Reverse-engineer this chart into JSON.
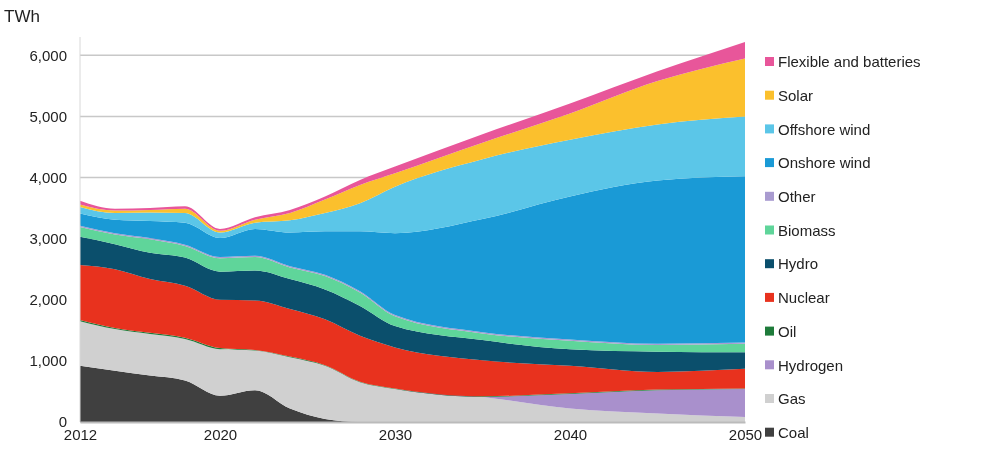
{
  "chart_data": {
    "type": "area",
    "stacked": true,
    "ylabel": "TWh",
    "x": [
      2012,
      2014,
      2016,
      2018,
      2020,
      2022,
      2024,
      2026,
      2028,
      2030,
      2035,
      2040,
      2045,
      2050
    ],
    "xlim": [
      2012,
      2050
    ],
    "xticks": [
      2012,
      2020,
      2030,
      2040,
      2050
    ],
    "ylim": [
      0,
      6300
    ],
    "yticks": [
      {
        "value": 0,
        "label": "0"
      },
      {
        "value": 1000,
        "label": "1,000"
      },
      {
        "value": 2000,
        "label": "2,000"
      },
      {
        "value": 3000,
        "label": "3,000"
      },
      {
        "value": 4000,
        "label": "4,000"
      },
      {
        "value": 5000,
        "label": "5,000"
      },
      {
        "value": 6000,
        "label": "6,000"
      }
    ],
    "grid": "y",
    "legend": "right",
    "series": [
      {
        "name": "Coal",
        "color": "#404040",
        "values": [
          920,
          840,
          760,
          680,
          430,
          520,
          220,
          50,
          0,
          0,
          0,
          0,
          0,
          0
        ]
      },
      {
        "name": "Gas",
        "color": "#d0d0d0",
        "values": [
          730,
          680,
          680,
          680,
          760,
          650,
          840,
          870,
          650,
          540,
          410,
          220,
          140,
          80
        ]
      },
      {
        "name": "Hydrogen",
        "color": "#a990cc",
        "values": [
          0,
          0,
          0,
          0,
          0,
          0,
          0,
          0,
          0,
          0,
          0,
          240,
          380,
          460
        ]
      },
      {
        "name": "Oil",
        "color": "#1e7b3a",
        "values": [
          20,
          20,
          20,
          20,
          20,
          10,
          10,
          10,
          10,
          10,
          10,
          10,
          10,
          10
        ]
      },
      {
        "name": "Nuclear",
        "color": "#e8321e",
        "values": [
          900,
          960,
          880,
          850,
          790,
          810,
          780,
          750,
          750,
          670,
          590,
          450,
          290,
          320
        ]
      },
      {
        "name": "Hydro",
        "color": "#0b4f6c",
        "values": [
          460,
          410,
          430,
          460,
          460,
          490,
          490,
          490,
          490,
          350,
          330,
          270,
          330,
          270
        ]
      },
      {
        "name": "Biomass",
        "color": "#5fd59a",
        "values": [
          160,
          160,
          220,
          190,
          220,
          220,
          190,
          220,
          220,
          160,
          110,
          140,
          110,
          140
        ]
      },
      {
        "name": "Other",
        "color": "#a99bd0",
        "values": [
          20,
          20,
          20,
          20,
          20,
          20,
          20,
          20,
          20,
          20,
          20,
          20,
          20,
          20
        ]
      },
      {
        "name": "Onshore wind",
        "color": "#1a9ad6",
        "values": [
          200,
          220,
          280,
          360,
          310,
          440,
          550,
          710,
          980,
          1340,
          1850,
          2340,
          2670,
          2720
        ]
      },
      {
        "name": "Offshore wind",
        "color": "#5bc6e8",
        "values": [
          110,
          110,
          140,
          160,
          90,
          100,
          200,
          300,
          460,
          760,
          980,
          930,
          920,
          980
        ]
      },
      {
        "name": "Solar",
        "color": "#fbc02d",
        "values": [
          40,
          40,
          40,
          70,
          30,
          50,
          120,
          220,
          300,
          220,
          270,
          430,
          710,
          950
        ]
      },
      {
        "name": "Flexible and batteries",
        "color": "#e8569a",
        "values": [
          60,
          30,
          30,
          40,
          30,
          40,
          50,
          50,
          80,
          110,
          140,
          160,
          160,
          270
        ]
      }
    ]
  }
}
